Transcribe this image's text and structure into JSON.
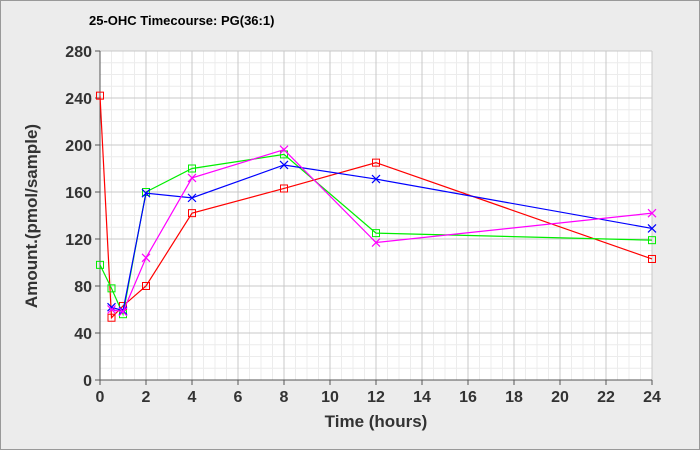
{
  "chart_data": {
    "type": "line",
    "title": "25-OHC Timecourse: PG(36:1)",
    "xlabel": "Time (hours)",
    "ylabel": "Amount.(pmol/sample)",
    "xlim": [
      0,
      24
    ],
    "ylim": [
      0,
      280
    ],
    "xticks": [
      0,
      2,
      4,
      6,
      8,
      10,
      12,
      14,
      16,
      18,
      20,
      22,
      24
    ],
    "yticks": [
      0,
      40,
      80,
      120,
      160,
      200,
      240,
      280
    ],
    "grid": true,
    "series": [
      {
        "name": "red",
        "color": "#ff0000",
        "marker": "square",
        "x": [
          0,
          0.5,
          1,
          2,
          4,
          8,
          12,
          24
        ],
        "y": [
          242,
          53,
          63,
          80,
          142,
          163,
          185,
          103
        ]
      },
      {
        "name": "green",
        "color": "#00ee00",
        "marker": "square",
        "x": [
          0,
          0.5,
          1,
          2,
          4,
          8,
          12,
          24
        ],
        "y": [
          98,
          78,
          56,
          160,
          180,
          192,
          125,
          119
        ]
      },
      {
        "name": "blue",
        "color": "#0000ff",
        "marker": "x",
        "x": [
          0.5,
          1,
          2,
          4,
          8,
          12,
          24
        ],
        "y": [
          62,
          59,
          159,
          155,
          183,
          171,
          129
        ]
      },
      {
        "name": "magenta",
        "color": "#ff00ff",
        "marker": "x",
        "x": [
          0.5,
          1,
          2,
          4,
          8,
          12,
          24
        ],
        "y": [
          60,
          58,
          104,
          172,
          196,
          117,
          142
        ]
      }
    ]
  }
}
